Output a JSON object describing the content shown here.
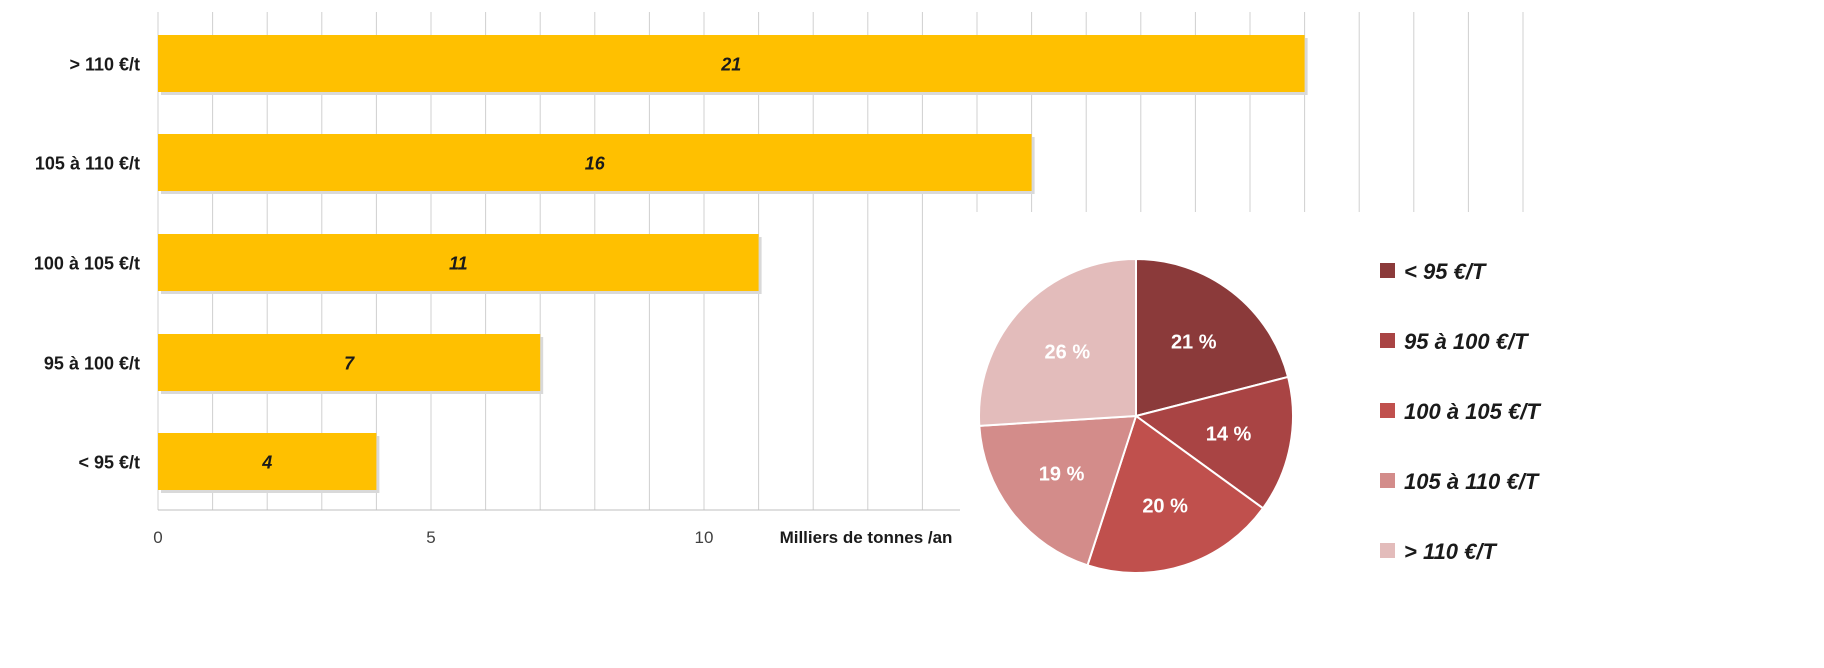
{
  "chart_data": [
    {
      "type": "bar",
      "orientation": "horizontal",
      "categories": [
        "> 110 €/t",
        "105 à 110 €/t",
        "100 à 105 €/t",
        "95 à 100 €/t",
        "< 95 €/t"
      ],
      "values": [
        21,
        16,
        11,
        7,
        4
      ],
      "data_labels": [
        "21",
        "16",
        "11",
        "7",
        "4"
      ],
      "bar_color": "#FFC000",
      "xlabel": "Milliers de tonnes /an",
      "x_ticks": [
        0,
        5,
        10
      ],
      "xlim": [
        0,
        25
      ],
      "grid": true
    },
    {
      "type": "pie",
      "labels": [
        "< 95 €/T",
        "95 à 100 €/T",
        "100 à 105 €/T",
        "105 à 110 €/T",
        "> 110 €/T"
      ],
      "values": [
        21,
        14,
        20,
        19,
        26
      ],
      "data_labels": [
        "21 %",
        "14 %",
        "20 %",
        "19 %",
        "26 %"
      ],
      "colors": [
        "#8B3A3A",
        "#A94444",
        "#C0504D",
        "#D38C8A",
        "#E3BCBB"
      ],
      "legend_position": "right"
    }
  ]
}
